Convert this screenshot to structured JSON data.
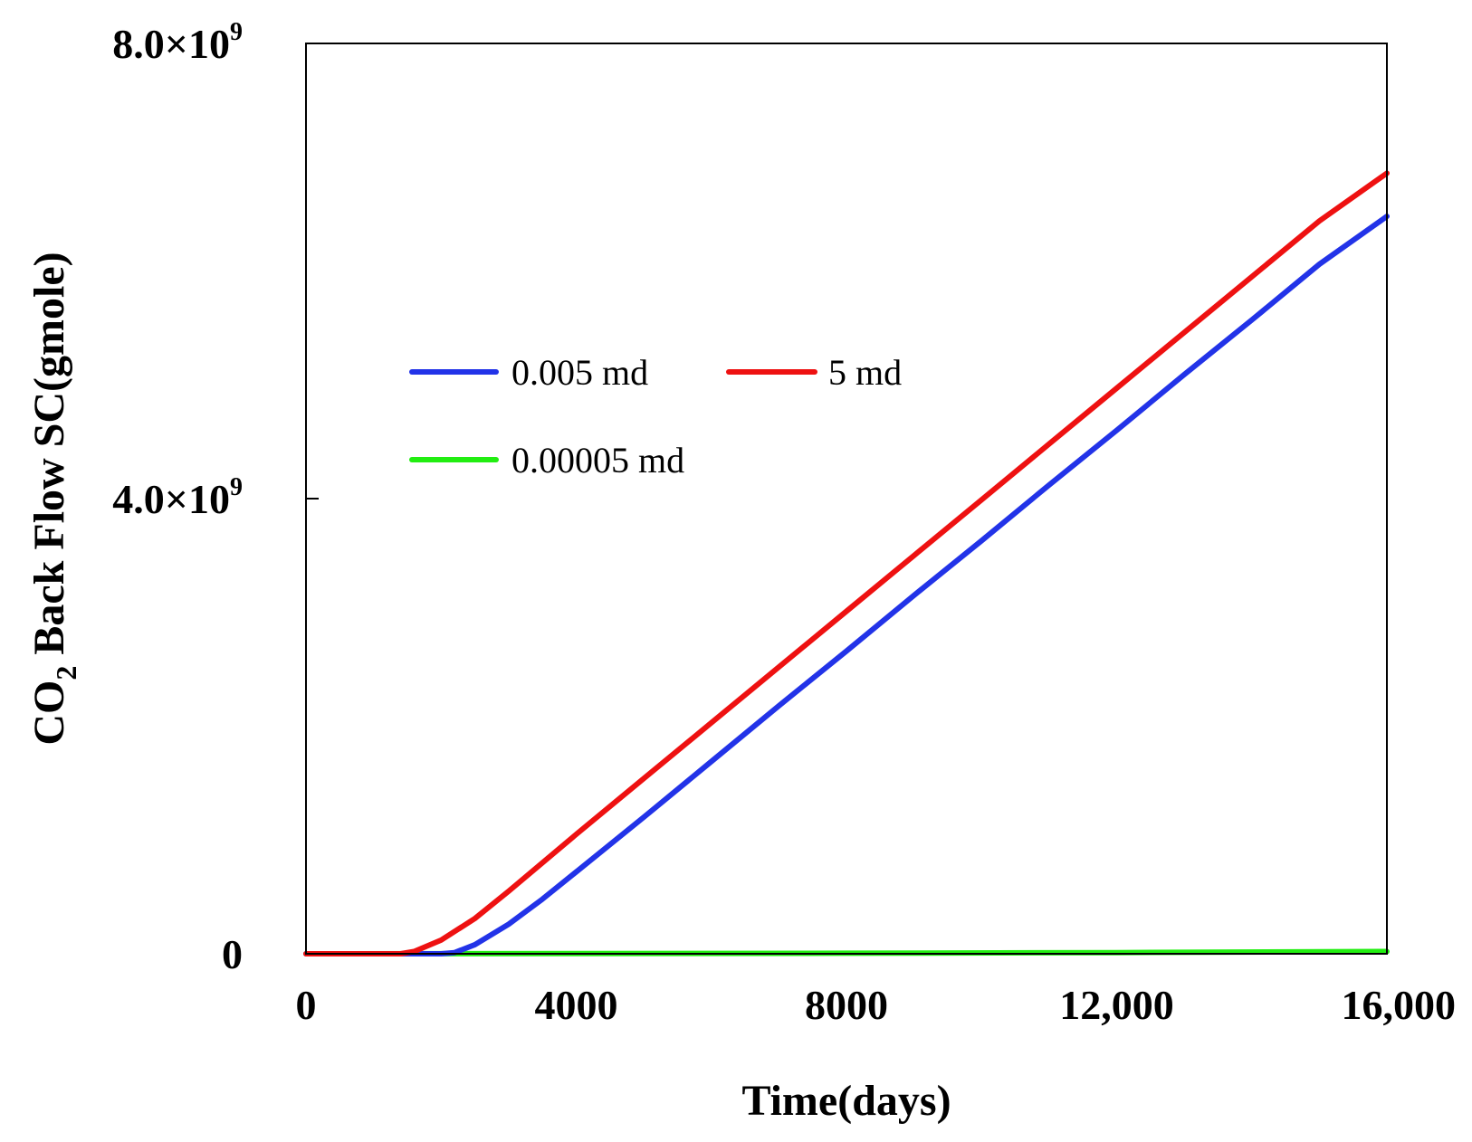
{
  "chart_data": {
    "type": "line",
    "title": "",
    "xlabel": "Time(days)",
    "ylabel_main": "CO",
    "ylabel_sub": "2",
    "ylabel_rest": " Back Flow SC(gmole)",
    "xlim": [
      0,
      16000
    ],
    "ylim": [
      0,
      8000000000
    ],
    "x_ticks": [
      {
        "value": 0,
        "label": "0"
      },
      {
        "value": 4000,
        "label": "4000"
      },
      {
        "value": 8000,
        "label": "8000"
      },
      {
        "value": 12000,
        "label": "12,000"
      },
      {
        "value": 16000,
        "label": "16,000"
      }
    ],
    "y_ticks": [
      {
        "value": 0,
        "mantissa": "0",
        "exp": ""
      },
      {
        "value": 4000000000,
        "mantissa": "4.0×10",
        "exp": "9"
      },
      {
        "value": 8000000000,
        "mantissa": "8.0×10",
        "exp": "9"
      }
    ],
    "grid": false,
    "legend_position": "upper-left",
    "series": [
      {
        "name": "0.005 md",
        "color": "#2233e8",
        "points": [
          [
            0,
            0
          ],
          [
            2000,
            0
          ],
          [
            2200,
            10000000
          ],
          [
            2500,
            80000000
          ],
          [
            3000,
            260000000
          ],
          [
            3500,
            480000000
          ],
          [
            4000,
            720000000
          ],
          [
            5000,
            1200000000
          ],
          [
            6000,
            1690000000
          ],
          [
            7000,
            2180000000
          ],
          [
            8000,
            2660000000
          ],
          [
            9000,
            3150000000
          ],
          [
            10000,
            3630000000
          ],
          [
            11000,
            4120000000
          ],
          [
            12000,
            4600000000
          ],
          [
            13000,
            5090000000
          ],
          [
            14000,
            5570000000
          ],
          [
            15000,
            6060000000
          ],
          [
            16000,
            6480000000
          ]
        ]
      },
      {
        "name": "5 md",
        "color": "#ee1111",
        "points": [
          [
            0,
            0
          ],
          [
            1400,
            0
          ],
          [
            1600,
            20000000
          ],
          [
            2000,
            120000000
          ],
          [
            2500,
            310000000
          ],
          [
            3000,
            550000000
          ],
          [
            4000,
            1050000000
          ],
          [
            5000,
            1540000000
          ],
          [
            6000,
            2030000000
          ],
          [
            7000,
            2520000000
          ],
          [
            8000,
            3010000000
          ],
          [
            9000,
            3500000000
          ],
          [
            10000,
            3990000000
          ],
          [
            11000,
            4480000000
          ],
          [
            12000,
            4970000000
          ],
          [
            13000,
            5460000000
          ],
          [
            14000,
            5950000000
          ],
          [
            15000,
            6440000000
          ],
          [
            16000,
            6860000000
          ]
        ]
      },
      {
        "name": "0.00005 md",
        "color": "#22ee11",
        "points": [
          [
            0,
            0
          ],
          [
            4000,
            2000000
          ],
          [
            8000,
            5000000
          ],
          [
            12000,
            10000000
          ],
          [
            16000,
            20000000
          ]
        ]
      }
    ]
  }
}
